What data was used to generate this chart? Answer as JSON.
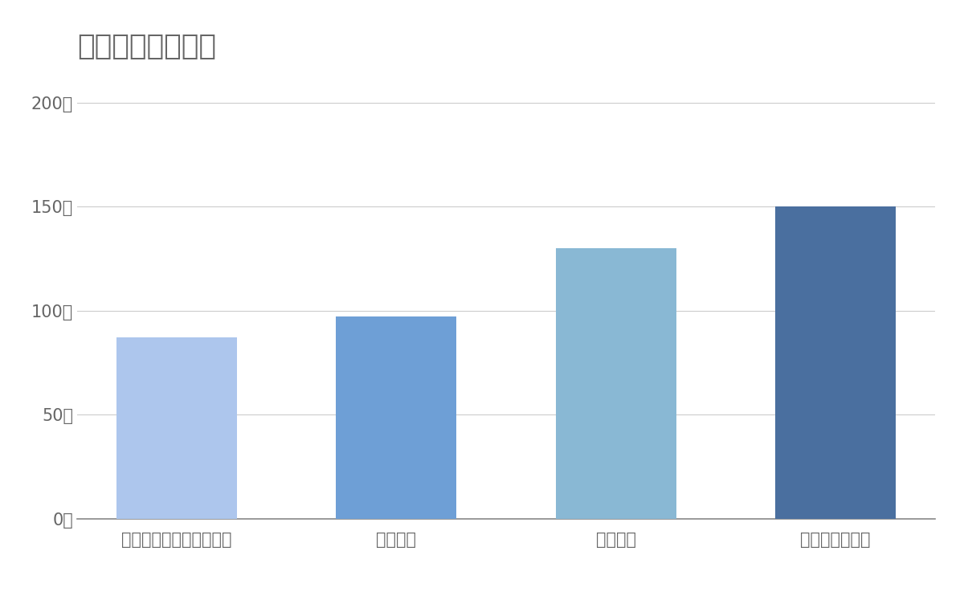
{
  "title": "競合含む年間売上",
  "categories": [
    "神鋼環境ソリューション",
    "月島機械",
    "オルガノ",
    "メタウォーター"
  ],
  "values": [
    87,
    97,
    130,
    150
  ],
  "bar_colors": [
    "#adc6ed",
    "#6e9fd6",
    "#89b8d4",
    "#4a6f9f"
  ],
  "yticks": [
    0,
    50,
    100,
    150,
    200
  ],
  "ytick_labels": [
    "0億",
    "50億",
    "100億",
    "150億",
    "200億"
  ],
  "ylim": [
    0,
    215
  ],
  "background_color": "#ffffff",
  "grid_color": "#cccccc",
  "title_color": "#666666",
  "tick_color": "#666666",
  "title_fontsize": 26,
  "tick_fontsize": 15,
  "xlabel_fontsize": 15,
  "bar_width": 0.55
}
